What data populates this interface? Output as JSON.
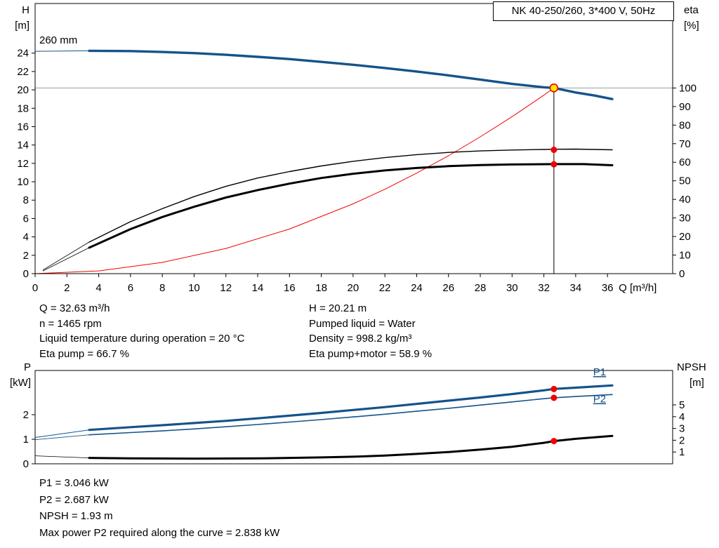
{
  "title_box": "NK 40-250/260, 3*400 V, 50Hz",
  "info_top": {
    "left": [
      "Q = 32.63 m³/h",
      "n = 1465 rpm",
      "Liquid temperature during operation = 20 °C",
      "Eta pump = 66.7 %"
    ],
    "right": [
      "H = 20.21 m",
      "Pumped liquid = Water",
      "Density = 998.2 kg/m³",
      "Eta pump+motor = 58.9 %"
    ]
  },
  "info_bottom": [
    "P1 = 3.046 kW",
    "P2 = 2.687 kW",
    "NPSH = 1.93 m",
    "Max power P2 required along the curve = 2.838 kW"
  ],
  "chart_data": [
    {
      "type": "line",
      "name": "qh-eta-chart",
      "impeller_label": "260 mm",
      "x_axis": {
        "label": "Q [m³/h]",
        "min": 0,
        "max": 36,
        "step": 2,
        "plot_max": 40.1,
        "show_labels": true
      },
      "y_axes": [
        {
          "id": "H",
          "side": "left",
          "label": [
            "H",
            "[m]"
          ],
          "min": 0,
          "max": 24,
          "step": 2,
          "plot_max": 29.4
        },
        {
          "id": "eta",
          "side": "right",
          "label": [
            "eta",
            "[%]"
          ],
          "min": 0,
          "max": 100,
          "step": 10,
          "plot_max": 145.5
        }
      ],
      "ref_lines": [
        {
          "type": "h",
          "axis": "H",
          "value": 20.21,
          "color": "#9b9b9b",
          "width": 1
        },
        {
          "type": "v",
          "axis": "H",
          "q": 32.63,
          "from": 20.21,
          "to": 0,
          "color": "#000000",
          "width": 1
        }
      ],
      "series": [
        {
          "name": "head-curve-lead",
          "axis": "H",
          "color": "#15538b",
          "width": 1,
          "points": [
            [
              0,
              24.2
            ],
            [
              3.4,
              24.25
            ]
          ]
        },
        {
          "name": "head-curve-260mm",
          "axis": "H",
          "color": "#15538b",
          "width": 3.4,
          "points": [
            [
              3.4,
              24.25
            ],
            [
              6,
              24.22
            ],
            [
              8,
              24.12
            ],
            [
              10,
              24.0
            ],
            [
              12,
              23.82
            ],
            [
              14,
              23.6
            ],
            [
              16,
              23.35
            ],
            [
              18,
              23.05
            ],
            [
              20,
              22.73
            ],
            [
              22,
              22.38
            ],
            [
              24,
              22.0
            ],
            [
              26,
              21.58
            ],
            [
              28,
              21.12
            ],
            [
              30,
              20.65
            ],
            [
              32,
              20.28
            ],
            [
              32.63,
              20.21
            ],
            [
              34,
              19.72
            ],
            [
              35.2,
              19.38
            ],
            [
              36.3,
              19.0
            ]
          ]
        },
        {
          "name": "system-curve",
          "axis": "H",
          "color": "#f10000",
          "width": 1,
          "points": [
            [
              0,
              0
            ],
            [
              4,
              0.3
            ],
            [
              8,
              1.22
            ],
            [
              12,
              2.74
            ],
            [
              16,
              4.86
            ],
            [
              20,
              7.6
            ],
            [
              22,
              9.19
            ],
            [
              24,
              10.94
            ],
            [
              26,
              12.83
            ],
            [
              28,
              14.89
            ],
            [
              30,
              17.08
            ],
            [
              32,
              19.43
            ],
            [
              32.63,
              20.21
            ]
          ]
        },
        {
          "name": "eta-pump-lead",
          "axis": "eta",
          "color": "#000000",
          "width": 0.8,
          "points": [
            [
              0.5,
              2
            ],
            [
              3.4,
              17
            ]
          ]
        },
        {
          "name": "eta-pump-curve",
          "axis": "eta",
          "color": "#000000",
          "width": 1.4,
          "points": [
            [
              3.4,
              17
            ],
            [
              6,
              28
            ],
            [
              8,
              35
            ],
            [
              10,
              41.5
            ],
            [
              12,
              47
            ],
            [
              14,
              51.5
            ],
            [
              16,
              55
            ],
            [
              18,
              58
            ],
            [
              20,
              60.5
            ],
            [
              22,
              62.5
            ],
            [
              24,
              64.1
            ],
            [
              26,
              65.3
            ],
            [
              28,
              66.1
            ],
            [
              30,
              66.6
            ],
            [
              32,
              66.9
            ],
            [
              32.63,
              67
            ],
            [
              34,
              67.1
            ],
            [
              36.3,
              66.7
            ]
          ]
        },
        {
          "name": "eta-pump-motor-lead",
          "axis": "eta",
          "color": "#000000",
          "width": 0.8,
          "points": [
            [
              0.5,
              1.5
            ],
            [
              3.4,
              14
            ]
          ]
        },
        {
          "name": "eta-pump-motor-curve",
          "axis": "eta",
          "color": "#000000",
          "width": 3,
          "points": [
            [
              3.4,
              14
            ],
            [
              6,
              24
            ],
            [
              8,
              30.5
            ],
            [
              10,
              36
            ],
            [
              12,
              41
            ],
            [
              14,
              45
            ],
            [
              16,
              48.5
            ],
            [
              18,
              51.5
            ],
            [
              20,
              53.8
            ],
            [
              22,
              55.6
            ],
            [
              24,
              56.9
            ],
            [
              26,
              57.9
            ],
            [
              28,
              58.5
            ],
            [
              30,
              58.8
            ],
            [
              32.63,
              59.0
            ],
            [
              34.5,
              59.0
            ],
            [
              36.3,
              58.4
            ]
          ]
        }
      ],
      "markers": [
        {
          "name": "duty-point",
          "axis": "H",
          "q": 32.63,
          "value": 20.21,
          "r": 5.5,
          "fill": "#ffe600",
          "stroke": "#f10000"
        },
        {
          "name": "eta-pump-point",
          "axis": "eta",
          "q": 32.63,
          "value": 66.7,
          "r": 4.5,
          "fill": "#f10000"
        },
        {
          "name": "eta-pump-motor-point",
          "axis": "eta",
          "q": 32.63,
          "value": 58.9,
          "r": 4.5,
          "fill": "#f10000"
        }
      ],
      "labels": []
    },
    {
      "type": "line",
      "name": "power-npsh-chart",
      "x_axis": {
        "label": "",
        "min": 0,
        "max": 36,
        "step": 2,
        "plot_max": 40.1,
        "show_labels": false
      },
      "y_axes": [
        {
          "id": "P",
          "side": "left",
          "label": [
            "P",
            "[kW]"
          ],
          "min": 0,
          "max": 2,
          "step": 1,
          "plot_max": 3.8
        },
        {
          "id": "NPSH",
          "side": "right",
          "label": [
            "NPSH",
            "[m]"
          ],
          "min": 0,
          "max": 5,
          "step": 1,
          "tick_min": 1,
          "plot_max": 7.92
        }
      ],
      "ref_lines": [],
      "series": [
        {
          "name": "p1-lead",
          "axis": "P",
          "color": "#15538b",
          "width": 1,
          "points": [
            [
              0,
              1.07
            ],
            [
              3.4,
              1.38
            ]
          ]
        },
        {
          "name": "p1-curve",
          "axis": "P",
          "color": "#15538b",
          "width": 3.2,
          "points": [
            [
              3.4,
              1.38
            ],
            [
              6,
              1.49
            ],
            [
              8,
              1.57
            ],
            [
              10,
              1.66
            ],
            [
              12,
              1.75
            ],
            [
              14,
              1.85
            ],
            [
              16,
              1.96
            ],
            [
              18,
              2.07
            ],
            [
              20,
              2.19
            ],
            [
              22,
              2.31
            ],
            [
              24,
              2.44
            ],
            [
              26,
              2.57
            ],
            [
              28,
              2.7
            ],
            [
              30,
              2.84
            ],
            [
              32,
              2.99
            ],
            [
              32.63,
              3.05
            ],
            [
              34,
              3.1
            ],
            [
              36.3,
              3.19
            ]
          ]
        },
        {
          "name": "p2-lead",
          "axis": "P",
          "color": "#15538b",
          "width": 0.9,
          "points": [
            [
              0,
              0.98
            ],
            [
              3.4,
              1.18
            ]
          ]
        },
        {
          "name": "p2-curve",
          "axis": "P",
          "color": "#15538b",
          "width": 1.6,
          "points": [
            [
              3.4,
              1.18
            ],
            [
              6,
              1.27
            ],
            [
              8,
              1.34
            ],
            [
              10,
              1.42
            ],
            [
              12,
              1.51
            ],
            [
              14,
              1.6
            ],
            [
              16,
              1.7
            ],
            [
              18,
              1.8
            ],
            [
              20,
              1.91
            ],
            [
              22,
              2.02
            ],
            [
              24,
              2.14
            ],
            [
              26,
              2.26
            ],
            [
              28,
              2.39
            ],
            [
              30,
              2.52
            ],
            [
              32,
              2.65
            ],
            [
              32.63,
              2.69
            ],
            [
              34,
              2.74
            ],
            [
              36.3,
              2.82
            ]
          ]
        },
        {
          "name": "npsh-lead",
          "axis": "NPSH",
          "color": "#000000",
          "width": 0.8,
          "points": [
            [
              0,
              0.68
            ],
            [
              3.4,
              0.5
            ]
          ]
        },
        {
          "name": "npsh-curve",
          "axis": "NPSH",
          "color": "#000000",
          "width": 3,
          "points": [
            [
              3.4,
              0.5
            ],
            [
              6,
              0.46
            ],
            [
              10,
              0.44
            ],
            [
              14,
              0.46
            ],
            [
              18,
              0.54
            ],
            [
              20,
              0.6
            ],
            [
              22,
              0.7
            ],
            [
              24,
              0.84
            ],
            [
              26,
              1.0
            ],
            [
              28,
              1.2
            ],
            [
              30,
              1.45
            ],
            [
              32,
              1.78
            ],
            [
              32.63,
              1.93
            ],
            [
              34,
              2.12
            ],
            [
              36.3,
              2.37
            ]
          ]
        }
      ],
      "markers": [
        {
          "name": "p1-point",
          "axis": "P",
          "q": 32.63,
          "value": 3.046,
          "r": 4.5,
          "fill": "#f10000"
        },
        {
          "name": "p2-point",
          "axis": "P",
          "q": 32.63,
          "value": 2.687,
          "r": 4.5,
          "fill": "#f10000"
        },
        {
          "name": "npsh-point",
          "axis": "NPSH",
          "q": 32.63,
          "value": 1.93,
          "r": 4.5,
          "fill": "#f10000"
        }
      ],
      "labels": [
        {
          "text": "P1",
          "axis": "P",
          "q": 35.1,
          "value": 3.74,
          "color": "#15538b"
        },
        {
          "text": "P2",
          "axis": "P",
          "q": 35.1,
          "value": 2.64,
          "color": "#15538b"
        }
      ]
    }
  ]
}
